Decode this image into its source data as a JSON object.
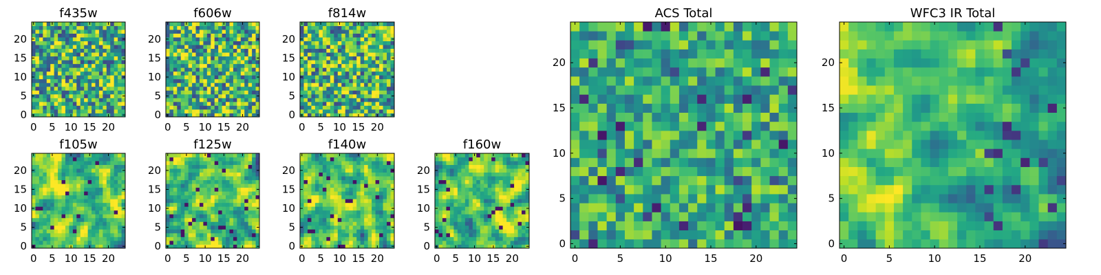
{
  "chart_data": [
    {
      "type": "heatmap",
      "title": "f435w",
      "xticks": [
        "0",
        "5",
        "10",
        "15",
        "20"
      ],
      "yticks": [
        "0",
        "5",
        "10",
        "15",
        "20"
      ],
      "xlim": [
        -0.5,
        24.5
      ],
      "ylim": [
        -0.5,
        24.5
      ],
      "grid_size": [
        25,
        25
      ],
      "colormap": "viridis",
      "grid": false,
      "texture": "fine random noise"
    },
    {
      "type": "heatmap",
      "title": "f606w",
      "xticks": [
        "0",
        "5",
        "10",
        "15",
        "20"
      ],
      "yticks": [
        "0",
        "5",
        "10",
        "15",
        "20"
      ],
      "xlim": [
        -0.5,
        24.5
      ],
      "ylim": [
        -0.5,
        24.5
      ],
      "grid_size": [
        25,
        25
      ],
      "colormap": "viridis",
      "grid": false,
      "texture": "fine random noise"
    },
    {
      "type": "heatmap",
      "title": "f814w",
      "xticks": [
        "0",
        "5",
        "10",
        "15",
        "20"
      ],
      "yticks": [
        "0",
        "5",
        "10",
        "15",
        "20"
      ],
      "xlim": [
        -0.5,
        24.5
      ],
      "ylim": [
        -0.5,
        24.5
      ],
      "grid_size": [
        25,
        25
      ],
      "colormap": "viridis",
      "grid": false,
      "texture": "fine random noise"
    },
    {
      "type": "heatmap",
      "title": "f105w",
      "xticks": [
        "0",
        "5",
        "10",
        "15",
        "20"
      ],
      "yticks": [
        "0",
        "5",
        "10",
        "15",
        "20"
      ],
      "xlim": [
        -0.5,
        24.5
      ],
      "ylim": [
        -0.5,
        24.5
      ],
      "grid_size": [
        25,
        25
      ],
      "colormap": "viridis",
      "grid": false,
      "texture": "smoothed noise"
    },
    {
      "type": "heatmap",
      "title": "f125w",
      "xticks": [
        "0",
        "5",
        "10",
        "15",
        "20"
      ],
      "yticks": [
        "0",
        "5",
        "10",
        "15",
        "20"
      ],
      "xlim": [
        -0.5,
        24.5
      ],
      "ylim": [
        -0.5,
        24.5
      ],
      "grid_size": [
        25,
        25
      ],
      "colormap": "viridis",
      "grid": false,
      "texture": "smoothed noise"
    },
    {
      "type": "heatmap",
      "title": "f140w",
      "xticks": [
        "0",
        "5",
        "10",
        "15",
        "20"
      ],
      "yticks": [
        "0",
        "5",
        "10",
        "15",
        "20"
      ],
      "xlim": [
        -0.5,
        24.5
      ],
      "ylim": [
        -0.5,
        24.5
      ],
      "grid_size": [
        25,
        25
      ],
      "colormap": "viridis",
      "grid": false,
      "texture": "smoothed noise"
    },
    {
      "type": "heatmap",
      "title": "f160w",
      "xticks": [
        "0",
        "5",
        "10",
        "15",
        "20"
      ],
      "yticks": [
        "0",
        "5",
        "10",
        "15",
        "20"
      ],
      "xlim": [
        -0.5,
        24.5
      ],
      "ylim": [
        -0.5,
        24.5
      ],
      "grid_size": [
        25,
        25
      ],
      "colormap": "viridis",
      "grid": false,
      "texture": "smoothed noise"
    },
    {
      "type": "heatmap",
      "title": "ACS Total",
      "xticks": [
        "0",
        "5",
        "10",
        "15",
        "20"
      ],
      "yticks": [
        "0",
        "5",
        "10",
        "15",
        "20"
      ],
      "xlim": [
        -0.5,
        24.5
      ],
      "ylim": [
        -0.5,
        24.5
      ],
      "grid_size": [
        25,
        25
      ],
      "colormap": "viridis",
      "grid": false,
      "texture": "coarse noise, mostly yellow-green with scattered dark cells"
    },
    {
      "type": "heatmap",
      "title": "WFC3 IR Total",
      "xticks": [
        "0",
        "5",
        "10",
        "15",
        "20"
      ],
      "yticks": [
        "0",
        "5",
        "10",
        "15",
        "20"
      ],
      "xlim": [
        -0.5,
        24.5
      ],
      "ylim": [
        -0.5,
        24.5
      ],
      "grid_size": [
        25,
        25
      ],
      "colormap": "viridis",
      "grid": false,
      "texture": "smoothed noise, yellow left side, dark clusters on right"
    }
  ]
}
